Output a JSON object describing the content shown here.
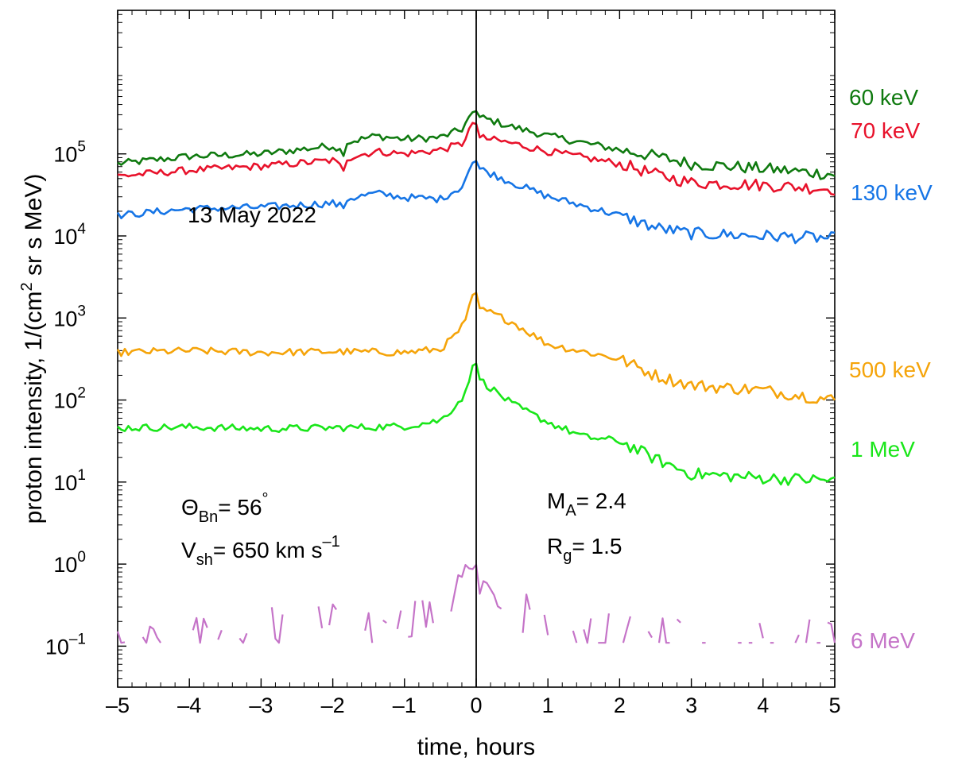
{
  "chart_data": {
    "type": "line",
    "title": "",
    "date_label": "13 May 2022",
    "xlabel": "time, hours",
    "ylabel": {
      "prefix": "proton intensity, 1/(cm",
      "sup": "2",
      "suffix": " sr s MeV)"
    },
    "xlim": [
      -5,
      5
    ],
    "ylim_log10": [
      -1.5,
      6.75
    ],
    "y_scale": "log",
    "grid": false,
    "x_ticks": [
      {
        "value": -5,
        "label": "–5"
      },
      {
        "value": -4,
        "label": "–4"
      },
      {
        "value": -3,
        "label": "–3"
      },
      {
        "value": -2,
        "label": "–2"
      },
      {
        "value": -1,
        "label": "–1"
      },
      {
        "value": 0,
        "label": "0"
      },
      {
        "value": 1,
        "label": "1"
      },
      {
        "value": 2,
        "label": "2"
      },
      {
        "value": 3,
        "label": "3"
      },
      {
        "value": 4,
        "label": "4"
      },
      {
        "value": 5,
        "label": "5"
      }
    ],
    "y_ticks": [
      {
        "exp": -1,
        "base": "10",
        "sup": "–1"
      },
      {
        "exp": 0,
        "base": "10",
        "sup": "0"
      },
      {
        "exp": 1,
        "base": "10",
        "sup": "1"
      },
      {
        "exp": 2,
        "base": "10",
        "sup": "2"
      },
      {
        "exp": 3,
        "base": "10",
        "sup": "3"
      },
      {
        "exp": 4,
        "base": "10",
        "sup": "4"
      },
      {
        "exp": 5,
        "base": "10",
        "sup": "5"
      }
    ],
    "reference_line_x": 0,
    "annotations": {
      "theta": {
        "sym": "Θ",
        "sub": "Bn",
        "rest": "= 56",
        "sup": "°"
      },
      "vsh": {
        "sym": "V",
        "sub": "sh",
        "rest": "= 650 km s",
        "sup": "–1"
      },
      "ma": {
        "sym": "M",
        "sub": "A",
        "rest": "= 2.4"
      },
      "rg": {
        "sym": "R",
        "sub": "g",
        "rest": "= 1.5"
      }
    },
    "series": [
      {
        "name": "60 keV",
        "color": "#0f7a0f",
        "shape": "rise_decay",
        "points": [
          [
            -5,
            4.88
          ],
          [
            -4,
            4.97
          ],
          [
            -3,
            5.0
          ],
          [
            -2,
            5.1
          ],
          [
            -1.85,
            5.02
          ],
          [
            -1.8,
            5.14
          ],
          [
            -1.4,
            5.22
          ],
          [
            -1,
            5.18
          ],
          [
            -0.5,
            5.2
          ],
          [
            -0.2,
            5.3
          ],
          [
            -0.02,
            5.55
          ],
          [
            0.05,
            5.45
          ],
          [
            0.5,
            5.33
          ],
          [
            1,
            5.22
          ],
          [
            2,
            5.05
          ],
          [
            2.5,
            4.97
          ],
          [
            3,
            4.88
          ],
          [
            4,
            4.82
          ],
          [
            5,
            4.75
          ]
        ]
      },
      {
        "name": "70 keV",
        "color": "#e8122b",
        "shape": "rise_decay",
        "points": [
          [
            -5,
            4.73
          ],
          [
            -4,
            4.8
          ],
          [
            -3,
            4.85
          ],
          [
            -2,
            4.92
          ],
          [
            -1.85,
            4.82
          ],
          [
            -1.8,
            4.95
          ],
          [
            -1.4,
            5.03
          ],
          [
            -1,
            5.0
          ],
          [
            -0.5,
            5.05
          ],
          [
            -0.2,
            5.12
          ],
          [
            -0.02,
            5.43
          ],
          [
            0.05,
            5.2
          ],
          [
            0.5,
            5.13
          ],
          [
            1,
            5.03
          ],
          [
            2,
            4.88
          ],
          [
            2.5,
            4.75
          ],
          [
            3,
            4.65
          ],
          [
            4,
            4.62
          ],
          [
            5,
            4.57
          ]
        ]
      },
      {
        "name": "130 keV",
        "color": "#1675e6",
        "shape": "rise_decay",
        "points": [
          [
            -5,
            4.25
          ],
          [
            -4,
            4.33
          ],
          [
            -3,
            4.35
          ],
          [
            -2,
            4.4
          ],
          [
            -1.85,
            4.35
          ],
          [
            -1.8,
            4.45
          ],
          [
            -1.4,
            4.52
          ],
          [
            -1,
            4.47
          ],
          [
            -0.5,
            4.45
          ],
          [
            -0.2,
            4.6
          ],
          [
            -0.02,
            4.95
          ],
          [
            0.05,
            4.82
          ],
          [
            0.5,
            4.65
          ],
          [
            1,
            4.48
          ],
          [
            2,
            4.25
          ],
          [
            2.5,
            4.1
          ],
          [
            3,
            4.03
          ],
          [
            4,
            4.0
          ],
          [
            5,
            3.97
          ]
        ]
      },
      {
        "name": "500 keV",
        "color": "#f5a40a",
        "shape": "rise_decay",
        "points": [
          [
            -5,
            2.58
          ],
          [
            -4,
            2.6
          ],
          [
            -3,
            2.58
          ],
          [
            -2,
            2.59
          ],
          [
            -1,
            2.58
          ],
          [
            -0.5,
            2.62
          ],
          [
            -0.3,
            2.78
          ],
          [
            -0.15,
            2.95
          ],
          [
            -0.02,
            3.38
          ],
          [
            0.05,
            3.12
          ],
          [
            0.5,
            2.95
          ],
          [
            1,
            2.68
          ],
          [
            2,
            2.5
          ],
          [
            2.5,
            2.3
          ],
          [
            3,
            2.18
          ],
          [
            4,
            2.12
          ],
          [
            5,
            2.0
          ]
        ]
      },
      {
        "name": "1 MeV",
        "color": "#19e619",
        "shape": "rise_decay",
        "points": [
          [
            -5,
            1.66
          ],
          [
            -4,
            1.67
          ],
          [
            -3,
            1.65
          ],
          [
            -2,
            1.66
          ],
          [
            -1,
            1.68
          ],
          [
            -0.5,
            1.75
          ],
          [
            -0.3,
            1.92
          ],
          [
            -0.15,
            2.08
          ],
          [
            -0.02,
            2.52
          ],
          [
            0.05,
            2.25
          ],
          [
            0.5,
            1.95
          ],
          [
            1,
            1.73
          ],
          [
            1.5,
            1.55
          ],
          [
            2,
            1.5
          ],
          [
            2.5,
            1.28
          ],
          [
            3,
            1.1
          ],
          [
            4,
            1.05
          ],
          [
            5,
            1.02
          ]
        ]
      },
      {
        "name": "6 MeV",
        "color": "#c574c8",
        "shape": "sparse",
        "points": [
          [
            -5,
            -0.85
          ],
          [
            -4.5,
            -0.95
          ],
          [
            -4,
            -0.88
          ],
          [
            -3.5,
            -0.9
          ],
          [
            -3,
            -0.75
          ],
          [
            -2.5,
            -0.85
          ],
          [
            -2,
            -0.7
          ],
          [
            -1.5,
            -0.8
          ],
          [
            -1,
            -0.72
          ],
          [
            -0.5,
            -0.6
          ],
          [
            -0.02,
            0.1
          ],
          [
            0.05,
            -0.3
          ],
          [
            0.5,
            -0.5
          ],
          [
            1,
            -0.75
          ],
          [
            2,
            -0.88
          ],
          [
            3,
            -0.9
          ],
          [
            4,
            -0.92
          ],
          [
            5,
            -0.95
          ]
        ]
      }
    ]
  }
}
